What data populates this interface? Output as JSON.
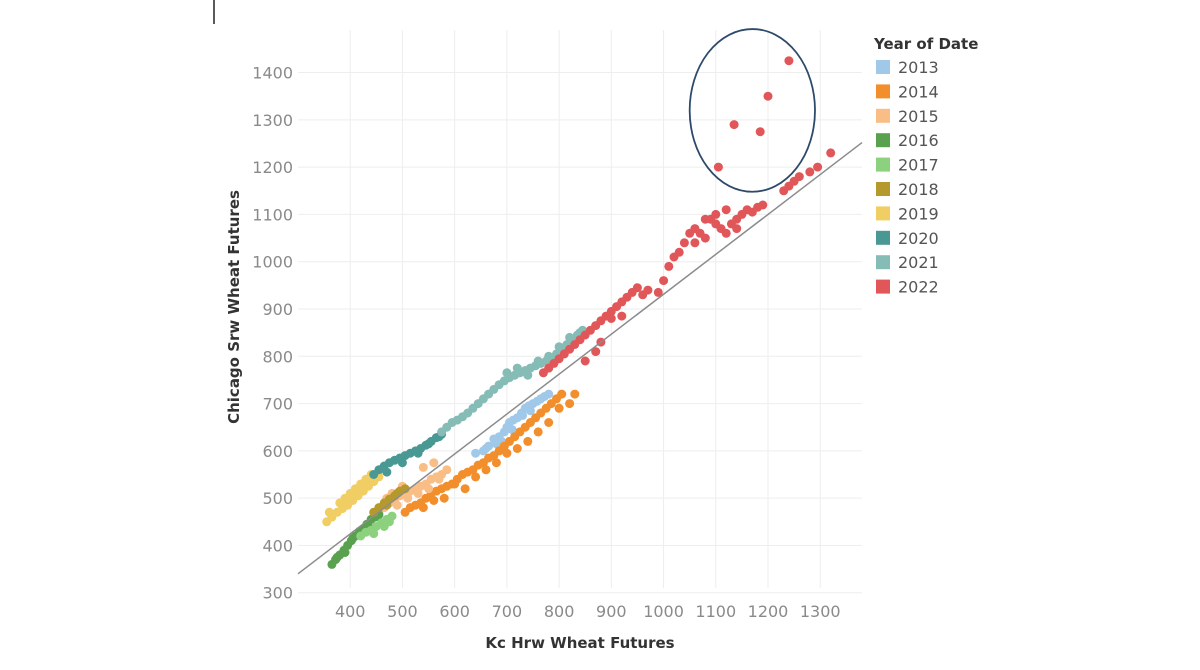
{
  "chart_data": {
    "type": "scatter",
    "xlabel": "Kc Hrw Wheat Futures",
    "ylabel": "Chicago Srw Wheat Futures",
    "xlim": [
      300,
      1380
    ],
    "ylim": [
      310,
      1490
    ],
    "x_ticks": [
      400,
      500,
      600,
      700,
      800,
      900,
      1000,
      1100,
      1200,
      1300
    ],
    "y_ticks": [
      300,
      400,
      500,
      600,
      700,
      800,
      900,
      1000,
      1100,
      1200,
      1300,
      1400
    ],
    "grid": true,
    "legend": {
      "title": "Year of Date",
      "placement": "right"
    },
    "trend_line": {
      "x": [
        300,
        1380
      ],
      "y": [
        340,
        1252
      ],
      "color": "#8c8c8c"
    },
    "annotation": {
      "shape": "ellipse",
      "center": [
        1170,
        1320
      ],
      "radii": [
        120,
        172
      ],
      "color": "#2e4a6b"
    },
    "series": [
      {
        "name": "2013",
        "color": "#a0c8e8",
        "points": [
          [
            655,
            600
          ],
          [
            665,
            610
          ],
          [
            675,
            625
          ],
          [
            685,
            630
          ],
          [
            695,
            640
          ],
          [
            700,
            650
          ],
          [
            705,
            660
          ],
          [
            712,
            665
          ],
          [
            720,
            670
          ],
          [
            728,
            680
          ],
          [
            735,
            690
          ],
          [
            742,
            695
          ],
          [
            750,
            700
          ],
          [
            758,
            705
          ],
          [
            765,
            710
          ],
          [
            772,
            715
          ],
          [
            780,
            720
          ],
          [
            640,
            595
          ],
          [
            660,
            605
          ],
          [
            680,
            615
          ],
          [
            690,
            620
          ],
          [
            710,
            645
          ],
          [
            730,
            675
          ],
          [
            745,
            685
          ]
        ]
      },
      {
        "name": "2014",
        "color": "#f28e2b",
        "points": [
          [
            505,
            470
          ],
          [
            515,
            480
          ],
          [
            525,
            485
          ],
          [
            535,
            490
          ],
          [
            545,
            500
          ],
          [
            555,
            510
          ],
          [
            565,
            515
          ],
          [
            575,
            520
          ],
          [
            585,
            525
          ],
          [
            595,
            530
          ],
          [
            605,
            540
          ],
          [
            615,
            550
          ],
          [
            625,
            555
          ],
          [
            635,
            560
          ],
          [
            645,
            570
          ],
          [
            655,
            575
          ],
          [
            665,
            585
          ],
          [
            675,
            590
          ],
          [
            685,
            600
          ],
          [
            695,
            610
          ],
          [
            705,
            620
          ],
          [
            715,
            630
          ],
          [
            725,
            640
          ],
          [
            735,
            650
          ],
          [
            745,
            660
          ],
          [
            755,
            670
          ],
          [
            765,
            680
          ],
          [
            775,
            690
          ],
          [
            785,
            700
          ],
          [
            795,
            710
          ],
          [
            805,
            720
          ],
          [
            600,
            530
          ],
          [
            620,
            520
          ],
          [
            640,
            545
          ],
          [
            660,
            560
          ],
          [
            680,
            575
          ],
          [
            700,
            595
          ],
          [
            720,
            605
          ],
          [
            740,
            620
          ],
          [
            760,
            640
          ],
          [
            780,
            660
          ],
          [
            800,
            690
          ],
          [
            820,
            700
          ],
          [
            830,
            720
          ],
          [
            580,
            500
          ],
          [
            560,
            495
          ],
          [
            540,
            480
          ]
        ]
      },
      {
        "name": "2015",
        "color": "#f9bd86",
        "points": [
          [
            455,
            470
          ],
          [
            465,
            480
          ],
          [
            475,
            490
          ],
          [
            485,
            495
          ],
          [
            495,
            505
          ],
          [
            505,
            510
          ],
          [
            515,
            515
          ],
          [
            525,
            520
          ],
          [
            535,
            525
          ],
          [
            545,
            530
          ],
          [
            555,
            540
          ],
          [
            565,
            545
          ],
          [
            575,
            550
          ],
          [
            585,
            560
          ],
          [
            470,
            500
          ],
          [
            490,
            485
          ],
          [
            510,
            500
          ],
          [
            530,
            510
          ],
          [
            550,
            520
          ],
          [
            570,
            540
          ],
          [
            540,
            565
          ],
          [
            560,
            575
          ],
          [
            500,
            525
          ],
          [
            480,
            510
          ]
        ]
      },
      {
        "name": "2016",
        "color": "#59a14f",
        "points": [
          [
            365,
            360
          ],
          [
            372,
            370
          ],
          [
            380,
            380
          ],
          [
            388,
            390
          ],
          [
            395,
            400
          ],
          [
            402,
            410
          ],
          [
            410,
            420
          ],
          [
            418,
            430
          ],
          [
            425,
            435
          ],
          [
            432,
            445
          ],
          [
            440,
            455
          ],
          [
            448,
            460
          ],
          [
            455,
            465
          ],
          [
            375,
            375
          ],
          [
            390,
            385
          ],
          [
            405,
            415
          ],
          [
            420,
            425
          ],
          [
            435,
            440
          ]
        ]
      },
      {
        "name": "2017",
        "color": "#8cd17d",
        "points": [
          [
            420,
            420
          ],
          [
            430,
            428
          ],
          [
            440,
            432
          ],
          [
            450,
            440
          ],
          [
            460,
            448
          ],
          [
            470,
            455
          ],
          [
            480,
            462
          ],
          [
            445,
            425
          ],
          [
            465,
            440
          ],
          [
            475,
            450
          ]
        ]
      },
      {
        "name": "2018",
        "color": "#b6992d",
        "points": [
          [
            445,
            470
          ],
          [
            455,
            480
          ],
          [
            465,
            490
          ],
          [
            475,
            498
          ],
          [
            485,
            505
          ],
          [
            495,
            515
          ],
          [
            505,
            520
          ],
          [
            470,
            485
          ],
          [
            490,
            510
          ]
        ]
      },
      {
        "name": "2019",
        "color": "#f1ce63",
        "points": [
          [
            355,
            450
          ],
          [
            365,
            460
          ],
          [
            375,
            470
          ],
          [
            385,
            478
          ],
          [
            395,
            485
          ],
          [
            405,
            495
          ],
          [
            415,
            505
          ],
          [
            425,
            515
          ],
          [
            435,
            525
          ],
          [
            445,
            535
          ],
          [
            455,
            545
          ],
          [
            380,
            490
          ],
          [
            400,
            510
          ],
          [
            420,
            530
          ],
          [
            440,
            550
          ],
          [
            360,
            470
          ],
          [
            390,
            500
          ],
          [
            410,
            520
          ],
          [
            430,
            540
          ]
        ]
      },
      {
        "name": "2020",
        "color": "#499894",
        "points": [
          [
            445,
            550
          ],
          [
            455,
            560
          ],
          [
            465,
            568
          ],
          [
            475,
            575
          ],
          [
            485,
            580
          ],
          [
            495,
            585
          ],
          [
            505,
            590
          ],
          [
            515,
            595
          ],
          [
            525,
            600
          ],
          [
            535,
            605
          ],
          [
            545,
            612
          ],
          [
            555,
            620
          ],
          [
            565,
            628
          ],
          [
            575,
            635
          ],
          [
            470,
            555
          ],
          [
            500,
            575
          ],
          [
            530,
            595
          ],
          [
            550,
            615
          ],
          [
            570,
            630
          ]
        ]
      },
      {
        "name": "2021",
        "color": "#86bcb6",
        "points": [
          [
            575,
            640
          ],
          [
            585,
            650
          ],
          [
            595,
            660
          ],
          [
            605,
            665
          ],
          [
            615,
            672
          ],
          [
            625,
            680
          ],
          [
            635,
            690
          ],
          [
            645,
            700
          ],
          [
            655,
            710
          ],
          [
            665,
            720
          ],
          [
            675,
            730
          ],
          [
            685,
            740
          ],
          [
            695,
            748
          ],
          [
            705,
            755
          ],
          [
            715,
            760
          ],
          [
            725,
            765
          ],
          [
            735,
            770
          ],
          [
            745,
            775
          ],
          [
            755,
            780
          ],
          [
            765,
            785
          ],
          [
            775,
            790
          ],
          [
            785,
            795
          ],
          [
            795,
            805
          ],
          [
            805,
            815
          ],
          [
            815,
            825
          ],
          [
            825,
            835
          ],
          [
            835,
            845
          ],
          [
            845,
            855
          ],
          [
            700,
            765
          ],
          [
            720,
            775
          ],
          [
            740,
            760
          ],
          [
            760,
            790
          ],
          [
            780,
            800
          ],
          [
            800,
            820
          ],
          [
            820,
            840
          ],
          [
            840,
            850
          ]
        ]
      },
      {
        "name": "2022",
        "color": "#e15759",
        "points": [
          [
            770,
            765
          ],
          [
            780,
            775
          ],
          [
            790,
            785
          ],
          [
            800,
            795
          ],
          [
            810,
            805
          ],
          [
            820,
            815
          ],
          [
            830,
            825
          ],
          [
            840,
            835
          ],
          [
            850,
            845
          ],
          [
            860,
            855
          ],
          [
            870,
            865
          ],
          [
            880,
            875
          ],
          [
            890,
            885
          ],
          [
            900,
            895
          ],
          [
            910,
            905
          ],
          [
            920,
            915
          ],
          [
            930,
            925
          ],
          [
            940,
            935
          ],
          [
            950,
            945
          ],
          [
            960,
            930
          ],
          [
            850,
            790
          ],
          [
            870,
            810
          ],
          [
            900,
            880
          ],
          [
            920,
            885
          ],
          [
            880,
            830
          ],
          [
            970,
            940
          ],
          [
            990,
            935
          ],
          [
            1000,
            960
          ],
          [
            1010,
            990
          ],
          [
            1020,
            1010
          ],
          [
            1030,
            1020
          ],
          [
            1040,
            1040
          ],
          [
            1050,
            1060
          ],
          [
            1060,
            1070
          ],
          [
            1070,
            1060
          ],
          [
            1080,
            1050
          ],
          [
            1090,
            1090
          ],
          [
            1100,
            1080
          ],
          [
            1110,
            1070
          ],
          [
            1120,
            1060
          ],
          [
            1130,
            1080
          ],
          [
            1140,
            1090
          ],
          [
            1150,
            1100
          ],
          [
            1160,
            1110
          ],
          [
            1170,
            1105
          ],
          [
            1180,
            1115
          ],
          [
            1190,
            1120
          ],
          [
            1060,
            1040
          ],
          [
            1080,
            1090
          ],
          [
            1100,
            1100
          ],
          [
            1120,
            1110
          ],
          [
            1140,
            1070
          ],
          [
            1230,
            1150
          ],
          [
            1240,
            1160
          ],
          [
            1250,
            1170
          ],
          [
            1260,
            1180
          ],
          [
            1280,
            1190
          ],
          [
            1295,
            1200
          ],
          [
            1320,
            1230
          ],
          [
            1105,
            1200
          ],
          [
            1135,
            1290
          ],
          [
            1185,
            1275
          ],
          [
            1200,
            1350
          ],
          [
            1240,
            1425
          ]
        ]
      }
    ]
  }
}
